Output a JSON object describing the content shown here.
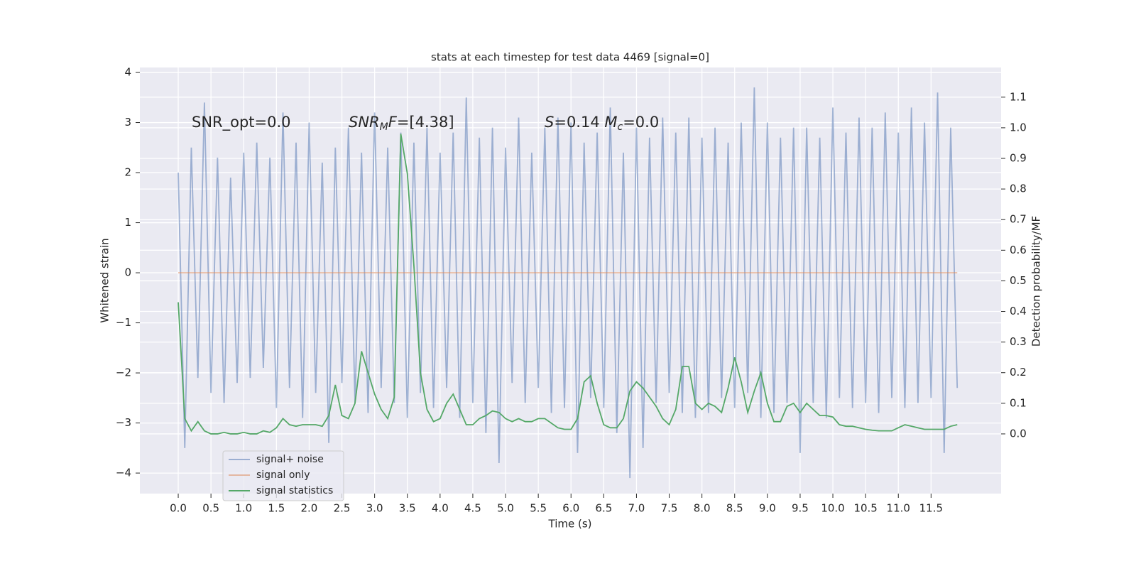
{
  "chart_data": {
    "type": "line",
    "title": "stats at each timestep for test data 4469 [signal=0]",
    "xlabel": "Time (s)",
    "ylabel": "Whitened strain",
    "y2label": "Detection probability/MF",
    "annotations": [
      [
        {
          "text": "SNR_opt=0.0",
          "style": "normal"
        }
      ],
      [
        {
          "text": "SNR",
          "style": "italic"
        },
        {
          "text": "M",
          "style": "italic-sub"
        },
        {
          "text": "F",
          "style": "italic"
        },
        {
          "text": "=[4.38]",
          "style": "normal"
        }
      ],
      [
        {
          "text": "S",
          "style": "italic"
        },
        {
          "text": "=0.14   ",
          "style": "normal"
        },
        {
          "text": "M",
          "style": "italic"
        },
        {
          "text": "c",
          "style": "italic-sub"
        },
        {
          "text": "=0.0",
          "style": "normal"
        }
      ]
    ],
    "x": [
      0.0,
      0.1,
      0.2,
      0.3,
      0.4,
      0.5,
      0.6,
      0.7,
      0.8,
      0.9,
      1.0,
      1.1,
      1.2,
      1.3,
      1.4,
      1.5,
      1.6,
      1.7,
      1.8,
      1.9,
      2.0,
      2.1,
      2.2,
      2.3,
      2.4,
      2.5,
      2.6,
      2.7,
      2.8,
      2.9,
      3.0,
      3.1,
      3.2,
      3.3,
      3.4,
      3.5,
      3.6,
      3.7,
      3.8,
      3.9,
      4.0,
      4.1,
      4.2,
      4.3,
      4.4,
      4.5,
      4.6,
      4.7,
      4.8,
      4.9,
      5.0,
      5.1,
      5.2,
      5.3,
      5.4,
      5.5,
      5.6,
      5.7,
      5.8,
      5.9,
      6.0,
      6.1,
      6.2,
      6.3,
      6.4,
      6.5,
      6.6,
      6.7,
      6.8,
      6.9,
      7.0,
      7.1,
      7.2,
      7.3,
      7.4,
      7.5,
      7.6,
      7.7,
      7.8,
      7.9,
      8.0,
      8.1,
      8.2,
      8.3,
      8.4,
      8.5,
      8.6,
      8.7,
      8.8,
      8.9,
      9.0,
      9.1,
      9.2,
      9.3,
      9.4,
      9.5,
      9.6,
      9.7,
      9.8,
      9.9,
      10.0,
      10.1,
      10.2,
      10.3,
      10.4,
      10.5,
      10.6,
      10.7,
      10.8,
      10.9,
      11.0,
      11.1,
      11.2,
      11.3,
      11.4,
      11.5,
      11.6,
      11.7,
      11.8,
      11.9
    ],
    "series": [
      {
        "name": "signal+ noise",
        "color": "#4c72b0",
        "alpha": 0.5,
        "values": [
          2.0,
          -3.5,
          2.5,
          -2.1,
          3.4,
          -2.4,
          2.3,
          -2.6,
          1.9,
          -2.2,
          2.4,
          -2.1,
          2.6,
          -1.9,
          2.3,
          -2.7,
          3.2,
          -2.3,
          2.6,
          -2.9,
          3.0,
          -2.4,
          2.2,
          -3.4,
          2.5,
          -2.2,
          2.9,
          -2.6,
          2.4,
          -2.8,
          3.2,
          -2.3,
          2.5,
          -2.6,
          2.8,
          -2.9,
          2.6,
          -2.4,
          2.9,
          -2.7,
          2.4,
          -2.3,
          2.8,
          -2.9,
          3.5,
          -2.6,
          2.7,
          -3.2,
          2.9,
          -3.8,
          2.5,
          -2.2,
          3.1,
          -2.6,
          2.4,
          -2.3,
          2.9,
          -2.8,
          3.1,
          -2.7,
          3.0,
          -3.6,
          2.6,
          -2.5,
          2.8,
          -2.7,
          3.3,
          -3.2,
          2.4,
          -4.1,
          2.9,
          -3.5,
          2.7,
          -2.6,
          3.1,
          -2.4,
          2.8,
          -2.8,
          3.1,
          -2.9,
          2.7,
          -2.8,
          2.9,
          -2.5,
          2.6,
          -2.7,
          3.0,
          -2.4,
          3.7,
          -2.9,
          3.0,
          -2.8,
          2.7,
          -2.6,
          2.9,
          -3.6,
          2.9,
          -2.6,
          2.7,
          -2.9,
          3.3,
          -2.5,
          2.8,
          -2.7,
          3.1,
          -2.6,
          2.9,
          -2.8,
          3.2,
          -2.5,
          2.8,
          -2.7,
          3.3,
          -2.6,
          3.0,
          -2.5,
          3.6,
          -3.6,
          2.9,
          -2.3
        ]
      },
      {
        "name": "signal only",
        "color": "#dd8452",
        "alpha": 0.5,
        "values": [
          0,
          0,
          0,
          0,
          0,
          0,
          0,
          0,
          0,
          0,
          0,
          0,
          0,
          0,
          0,
          0,
          0,
          0,
          0,
          0,
          0,
          0,
          0,
          0,
          0,
          0,
          0,
          0,
          0,
          0,
          0,
          0,
          0,
          0,
          0,
          0,
          0,
          0,
          0,
          0,
          0,
          0,
          0,
          0,
          0,
          0,
          0,
          0,
          0,
          0,
          0,
          0,
          0,
          0,
          0,
          0,
          0,
          0,
          0,
          0,
          0,
          0,
          0,
          0,
          0,
          0,
          0,
          0,
          0,
          0,
          0,
          0,
          0,
          0,
          0,
          0,
          0,
          0,
          0,
          0,
          0,
          0,
          0,
          0,
          0,
          0,
          0,
          0,
          0,
          0,
          0,
          0,
          0,
          0,
          0,
          0,
          0,
          0,
          0,
          0,
          0,
          0,
          0,
          0,
          0,
          0,
          0,
          0,
          0,
          0,
          0,
          0,
          0,
          0,
          0,
          0,
          0,
          0,
          0,
          0
        ]
      },
      {
        "name": "signal statistics",
        "color": "#55a868",
        "alpha": 1,
        "axis": "y2",
        "values": [
          0.43,
          0.05,
          0.01,
          0.04,
          0.01,
          0.0,
          0.0,
          0.005,
          0.0,
          0.0,
          0.005,
          0.0,
          0.0,
          0.01,
          0.005,
          0.02,
          0.05,
          0.03,
          0.025,
          0.03,
          0.03,
          0.03,
          0.025,
          0.06,
          0.16,
          0.06,
          0.05,
          0.1,
          0.27,
          0.2,
          0.13,
          0.08,
          0.05,
          0.12,
          0.98,
          0.85,
          0.55,
          0.2,
          0.08,
          0.04,
          0.05,
          0.1,
          0.13,
          0.08,
          0.03,
          0.03,
          0.05,
          0.06,
          0.075,
          0.07,
          0.05,
          0.04,
          0.05,
          0.04,
          0.04,
          0.05,
          0.05,
          0.035,
          0.02,
          0.015,
          0.015,
          0.05,
          0.17,
          0.19,
          0.1,
          0.03,
          0.02,
          0.02,
          0.05,
          0.14,
          0.17,
          0.15,
          0.12,
          0.09,
          0.05,
          0.03,
          0.08,
          0.22,
          0.22,
          0.1,
          0.08,
          0.1,
          0.09,
          0.07,
          0.15,
          0.25,
          0.17,
          0.07,
          0.14,
          0.2,
          0.1,
          0.04,
          0.04,
          0.09,
          0.1,
          0.07,
          0.1,
          0.08,
          0.06,
          0.06,
          0.055,
          0.03,
          0.025,
          0.025,
          0.02,
          0.015,
          0.012,
          0.01,
          0.01,
          0.01,
          0.02,
          0.03,
          0.025,
          0.02,
          0.015,
          0.015,
          0.015,
          0.015,
          0.025,
          0.03
        ]
      }
    ],
    "xlim": [
      -0.586,
      12.57
    ],
    "ylim": [
      -4.41,
      4.1
    ],
    "y2lim": [
      -0.195,
      1.197
    ],
    "xticks": [
      {
        "value": 0,
        "label": "0.0"
      },
      0.5,
      {
        "value": 1,
        "label": "1.0"
      },
      1.5,
      {
        "value": 2,
        "label": "2.0"
      },
      2.5,
      {
        "value": 3,
        "label": "3.0"
      },
      3.5,
      {
        "value": 4,
        "label": "4.0"
      },
      4.5,
      {
        "value": 5,
        "label": "5.0"
      },
      5.5,
      {
        "value": 6,
        "label": "6.0"
      },
      6.5,
      {
        "value": 7,
        "label": "7.0"
      },
      7.5,
      {
        "value": 8,
        "label": "8.0"
      },
      8.5,
      {
        "value": 9,
        "label": "9.0"
      },
      9.5,
      {
        "value": 10,
        "label": "10.0"
      },
      10.5,
      {
        "value": 11,
        "label": "11.0"
      },
      11.5
    ],
    "yticks": [
      {
        "value": -4,
        "label": "−4"
      },
      {
        "value": -3,
        "label": "−3"
      },
      {
        "value": -2,
        "label": "−2"
      },
      {
        "value": -1,
        "label": "−1"
      },
      0,
      1,
      2,
      3,
      4
    ],
    "y2ticks": [
      {
        "value": 0,
        "label": "0.0"
      },
      0.1,
      0.2,
      0.3,
      0.4,
      0.5,
      0.6,
      0.7,
      0.8,
      0.9,
      {
        "value": 1,
        "label": "1.0"
      },
      1.1
    ],
    "grid": true,
    "legend": "lower left"
  }
}
